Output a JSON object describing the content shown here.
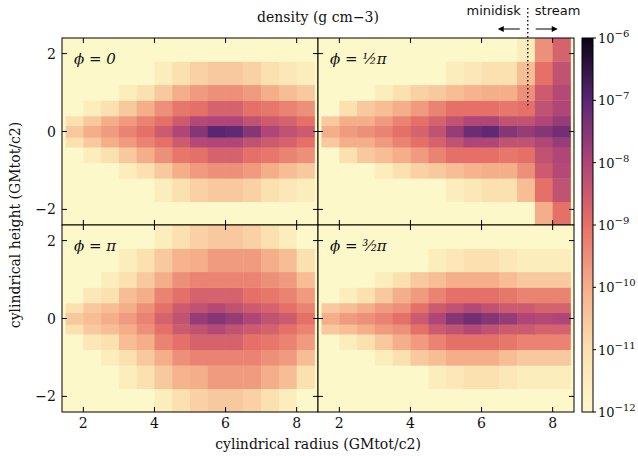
{
  "chart_data": {
    "type": "heatmap",
    "title": "density (g cm−3)",
    "xlabel": "cylindrical radius (GMtot/c2)",
    "ylabel": "cylindrical height (GMtot/c2)",
    "xlim": [
      1.4,
      8.6
    ],
    "ylim": [
      -2.4,
      2.4
    ],
    "xticks": [
      2,
      4,
      6,
      8
    ],
    "yticks": [
      {
        "value": -2,
        "label": "−2"
      },
      0,
      2
    ],
    "x_edges": [
      1.5,
      2,
      2.5,
      3,
      3.5,
      4,
      4.5,
      5,
      5.5,
      6,
      6.5,
      7,
      7.5,
      8,
      8.5
    ],
    "y_edges": [
      -2.4,
      -1.8,
      -1.2,
      -0.8,
      -0.4,
      -0.15,
      0.15,
      0.4,
      0.8,
      1.2,
      1.8,
      2.4
    ],
    "colorbar": {
      "range": [
        1e-12,
        1e-06
      ],
      "log": true,
      "ticks": [
        {
          "value": 1e-06,
          "label": "10−6"
        },
        {
          "value": 1e-07,
          "label": "10−7"
        },
        {
          "value": 1e-08,
          "label": "10−8"
        },
        {
          "value": 1e-09,
          "label": "10−9"
        },
        {
          "value": 1e-10,
          "label": "10−10"
        },
        {
          "value": 1e-11,
          "label": "10−11"
        },
        {
          "value": 1e-12,
          "label": "10−12"
        }
      ]
    },
    "annotation": {
      "left": "minidisk",
      "right": "stream",
      "x": 7.3
    },
    "panels": [
      {
        "label": "ϕ = 0",
        "cells": [
          [
            1e-12,
            1e-12,
            1e-12,
            1e-12,
            1e-12,
            1e-12,
            1e-12,
            1e-12,
            1e-12,
            1e-12,
            1e-12,
            1e-12,
            1e-12,
            1e-12
          ],
          [
            1e-12,
            1e-12,
            1e-12,
            1e-12,
            1e-12,
            3e-12,
            1e-11,
            2e-11,
            3e-11,
            3e-11,
            2e-11,
            1e-11,
            5e-12,
            3e-12
          ],
          [
            1e-12,
            1e-12,
            1e-12,
            3e-12,
            1e-11,
            3e-11,
            1e-10,
            2e-10,
            3e-10,
            3e-10,
            2e-10,
            1e-10,
            5e-11,
            3e-11
          ],
          [
            1e-12,
            3e-12,
            1e-11,
            3e-11,
            1e-10,
            3e-10,
            8e-10,
            1e-09,
            2e-09,
            2e-09,
            1e-09,
            8e-10,
            5e-10,
            3e-10
          ],
          [
            1e-11,
            3e-11,
            1e-10,
            2e-10,
            5e-10,
            1e-09,
            3e-09,
            8e-09,
            1e-08,
            1e-08,
            5e-09,
            3e-09,
            2e-09,
            1e-09
          ],
          [
            3e-11,
            1e-10,
            2e-10,
            5e-10,
            1e-09,
            3e-09,
            1e-08,
            3e-08,
            1e-07,
            8e-08,
            3e-08,
            1e-08,
            5e-09,
            3e-09
          ],
          [
            1e-11,
            3e-11,
            1e-10,
            2e-10,
            5e-10,
            1e-09,
            3e-09,
            8e-09,
            1e-08,
            1e-08,
            5e-09,
            3e-09,
            2e-09,
            1e-09
          ],
          [
            1e-12,
            3e-12,
            1e-11,
            3e-11,
            1e-10,
            3e-10,
            8e-10,
            1e-09,
            2e-09,
            2e-09,
            1e-09,
            8e-10,
            5e-10,
            3e-10
          ],
          [
            1e-12,
            1e-12,
            1e-12,
            3e-12,
            1e-11,
            3e-11,
            1e-10,
            2e-10,
            3e-10,
            3e-10,
            2e-10,
            1e-10,
            5e-11,
            3e-11
          ],
          [
            1e-12,
            1e-12,
            1e-12,
            1e-12,
            1e-12,
            3e-12,
            1e-11,
            2e-11,
            3e-11,
            3e-11,
            2e-11,
            1e-11,
            5e-12,
            3e-12
          ],
          [
            1e-12,
            1e-12,
            1e-12,
            1e-12,
            1e-12,
            1e-12,
            1e-12,
            1e-12,
            1e-12,
            1e-12,
            1e-12,
            1e-12,
            1e-12,
            1e-12
          ]
        ]
      },
      {
        "label": "ϕ = ½π",
        "cells": [
          [
            1e-12,
            1e-12,
            1e-12,
            1e-12,
            1e-12,
            1e-12,
            1e-12,
            1e-12,
            1e-12,
            1e-12,
            1e-12,
            1e-12,
            1e-10,
            1e-09
          ],
          [
            1e-12,
            1e-12,
            1e-12,
            1e-12,
            1e-12,
            1e-12,
            1e-12,
            3e-12,
            5e-12,
            1e-11,
            1e-11,
            5e-11,
            1e-09,
            5e-09
          ],
          [
            1e-12,
            1e-12,
            1e-12,
            3e-12,
            1e-11,
            2e-11,
            3e-11,
            5e-11,
            8e-11,
            1e-10,
            1e-10,
            3e-10,
            3e-09,
            8e-09
          ],
          [
            1e-12,
            1e-11,
            3e-11,
            5e-11,
            1e-10,
            2e-10,
            5e-10,
            1e-09,
            1e-09,
            1e-09,
            8e-10,
            1e-09,
            5e-09,
            1e-08
          ],
          [
            3e-11,
            1e-10,
            1e-10,
            2e-10,
            5e-10,
            1e-09,
            2e-09,
            5e-09,
            1e-08,
            1e-08,
            5e-09,
            5e-09,
            1e-08,
            2e-08
          ],
          [
            1e-10,
            2e-10,
            3e-10,
            5e-10,
            1e-09,
            2e-09,
            5e-09,
            2e-08,
            6e-08,
            8e-08,
            3e-08,
            2e-08,
            3e-08,
            5e-08
          ],
          [
            3e-11,
            1e-10,
            1e-10,
            2e-10,
            5e-10,
            1e-09,
            2e-09,
            5e-09,
            1e-08,
            1e-08,
            5e-09,
            5e-09,
            1e-08,
            2e-08
          ],
          [
            1e-12,
            1e-11,
            3e-11,
            5e-11,
            1e-10,
            2e-10,
            5e-10,
            1e-09,
            1e-09,
            1e-09,
            8e-10,
            1e-09,
            5e-09,
            1e-08
          ],
          [
            1e-12,
            1e-12,
            1e-12,
            3e-12,
            1e-11,
            2e-11,
            3e-11,
            5e-11,
            8e-11,
            1e-10,
            1e-10,
            3e-10,
            3e-09,
            8e-09
          ],
          [
            1e-12,
            1e-12,
            1e-12,
            1e-12,
            1e-12,
            1e-12,
            1e-12,
            3e-12,
            5e-12,
            1e-11,
            1e-11,
            5e-11,
            1e-09,
            5e-09
          ],
          [
            1e-12,
            1e-12,
            1e-12,
            1e-12,
            1e-12,
            1e-12,
            1e-12,
            1e-12,
            1e-12,
            1e-12,
            1e-12,
            3e-12,
            3e-10,
            2e-09
          ]
        ]
      },
      {
        "label": "ϕ = π",
        "cells": [
          [
            1e-12,
            1e-12,
            1e-12,
            1e-12,
            1e-12,
            3e-12,
            1e-11,
            2e-11,
            3e-11,
            3e-11,
            2e-11,
            1e-11,
            3e-12,
            1e-12
          ],
          [
            1e-12,
            1e-12,
            1e-12,
            3e-12,
            1e-11,
            3e-11,
            8e-11,
            1e-10,
            2e-10,
            2e-10,
            2e-10,
            1e-10,
            5e-11,
            1e-11
          ],
          [
            1e-12,
            1e-12,
            3e-12,
            1e-11,
            3e-11,
            1e-10,
            3e-10,
            5e-10,
            5e-10,
            5e-10,
            5e-10,
            3e-10,
            2e-10,
            5e-11
          ],
          [
            1e-12,
            5e-12,
            1e-11,
            5e-11,
            1e-10,
            5e-10,
            1e-09,
            2e-09,
            2e-09,
            2e-09,
            1e-09,
            8e-10,
            5e-10,
            2e-10
          ],
          [
            1e-11,
            3e-11,
            5e-11,
            1e-10,
            3e-10,
            1e-09,
            3e-09,
            5e-09,
            8e-09,
            5e-09,
            3e-09,
            2e-09,
            1e-09,
            5e-10
          ],
          [
            3e-11,
            5e-11,
            1e-10,
            2e-10,
            5e-10,
            2e-09,
            5e-09,
            2e-08,
            3e-08,
            2e-08,
            1e-08,
            5e-09,
            3e-09,
            1e-09
          ],
          [
            1e-11,
            3e-11,
            5e-11,
            1e-10,
            3e-10,
            1e-09,
            3e-09,
            5e-09,
            8e-09,
            5e-09,
            3e-09,
            2e-09,
            1e-09,
            5e-10
          ],
          [
            1e-12,
            5e-12,
            1e-11,
            5e-11,
            1e-10,
            5e-10,
            1e-09,
            2e-09,
            2e-09,
            2e-09,
            1e-09,
            8e-10,
            5e-10,
            2e-10
          ],
          [
            1e-12,
            1e-12,
            3e-12,
            1e-11,
            3e-11,
            1e-10,
            3e-10,
            5e-10,
            5e-10,
            5e-10,
            5e-10,
            3e-10,
            2e-10,
            5e-11
          ],
          [
            1e-12,
            1e-12,
            1e-12,
            3e-12,
            1e-11,
            3e-11,
            8e-11,
            1e-10,
            2e-10,
            2e-10,
            2e-10,
            1e-10,
            5e-11,
            1e-11
          ],
          [
            1e-12,
            1e-12,
            1e-12,
            1e-12,
            1e-12,
            3e-12,
            1e-11,
            2e-11,
            3e-11,
            3e-11,
            2e-11,
            1e-11,
            3e-12,
            1e-12
          ]
        ]
      },
      {
        "label": "ϕ = ³⁄₂π",
        "cells": [
          [
            1e-12,
            1e-12,
            1e-12,
            1e-12,
            1e-12,
            1e-12,
            1e-12,
            1e-12,
            1e-12,
            1e-12,
            1e-12,
            1e-12,
            1e-12,
            1e-12
          ],
          [
            1e-12,
            1e-12,
            1e-12,
            1e-12,
            1e-12,
            1e-12,
            3e-12,
            5e-12,
            1e-11,
            1e-11,
            5e-12,
            3e-12,
            3e-12,
            3e-12
          ],
          [
            1e-12,
            1e-12,
            1e-12,
            3e-12,
            1e-11,
            3e-11,
            5e-11,
            1e-10,
            1e-10,
            1e-10,
            5e-11,
            3e-11,
            3e-11,
            3e-11
          ],
          [
            1e-12,
            3e-12,
            1e-11,
            3e-11,
            1e-10,
            2e-10,
            5e-10,
            1e-09,
            1e-09,
            1e-09,
            8e-10,
            5e-10,
            5e-10,
            5e-10
          ],
          [
            3e-11,
            5e-11,
            1e-10,
            2e-10,
            3e-10,
            1e-09,
            3e-09,
            5e-09,
            8e-09,
            5e-09,
            3e-09,
            3e-09,
            2e-09,
            2e-09
          ],
          [
            1e-10,
            2e-10,
            3e-10,
            5e-10,
            1e-09,
            3e-09,
            1e-08,
            3e-08,
            5e-08,
            3e-08,
            2e-08,
            1e-08,
            8e-09,
            1e-08
          ],
          [
            3e-11,
            5e-11,
            1e-10,
            2e-10,
            3e-10,
            1e-09,
            3e-09,
            5e-09,
            8e-09,
            5e-09,
            3e-09,
            3e-09,
            2e-09,
            2e-09
          ],
          [
            1e-12,
            3e-12,
            1e-11,
            3e-11,
            1e-10,
            2e-10,
            5e-10,
            1e-09,
            1e-09,
            1e-09,
            8e-10,
            5e-10,
            5e-10,
            5e-10
          ],
          [
            1e-12,
            1e-12,
            1e-12,
            3e-12,
            1e-11,
            3e-11,
            5e-11,
            1e-10,
            1e-10,
            1e-10,
            5e-11,
            3e-11,
            3e-11,
            3e-11
          ],
          [
            1e-12,
            1e-12,
            1e-12,
            1e-12,
            1e-12,
            1e-12,
            3e-12,
            5e-12,
            1e-11,
            1e-11,
            5e-12,
            3e-12,
            3e-12,
            3e-12
          ],
          [
            1e-12,
            1e-12,
            1e-12,
            1e-12,
            1e-12,
            1e-12,
            1e-12,
            1e-12,
            1e-12,
            1e-12,
            1e-12,
            1e-12,
            1e-12,
            1e-12
          ]
        ]
      }
    ]
  }
}
